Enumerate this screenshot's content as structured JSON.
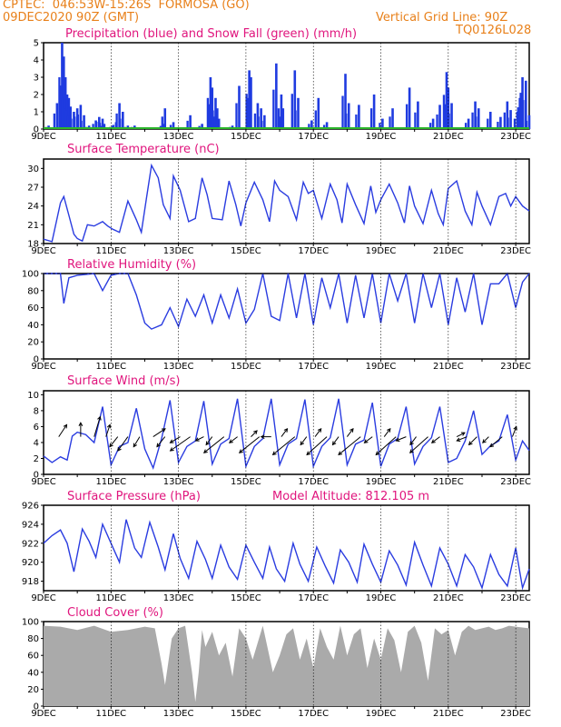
{
  "header": {
    "line1": "CPTEC:  046:53W-15:26S  FORMOSA (GO)",
    "line2": "09DEC2020 90Z (GMT)",
    "grid_note": "Vertical Grid Line: 90Z",
    "code": "TQ0126L028"
  },
  "colors": {
    "header": "#e8801a",
    "title": "#e0157d",
    "line": "#2a3ce0",
    "bar": "#1f3be0",
    "snow": "#2bb52b",
    "cloud": "#aaaaaa"
  },
  "x_tick_labels": [
    "9DEC",
    "11DEC",
    "13DEC",
    "15DEC",
    "17DEC",
    "19DEC",
    "21DEC",
    "23DEC"
  ],
  "chart_data": [
    {
      "type": "bar",
      "title": "Precipitation (blue) and Snow Fall (green) (mm/h)",
      "ylim": [
        0,
        5
      ],
      "yticks": [
        "0",
        "1",
        "2",
        "3",
        "4",
        "5"
      ],
      "series": [
        {
          "name": "Precipitation",
          "x_days": [
            0.15,
            0.4,
            0.55,
            0.6,
            0.65,
            0.7,
            0.75,
            0.8,
            0.9,
            1.0,
            1.1,
            1.2,
            1.35,
            1.55,
            1.65,
            1.75,
            1.8,
            2.05,
            2.15,
            2.25,
            2.35,
            2.5,
            2.7,
            3.5,
            3.55,
            3.6,
            3.85,
            4.35,
            4.7,
            4.95,
            5.0,
            5.1,
            5.15,
            5.2,
            5.6,
            5.8,
            6.1,
            6.15,
            6.35,
            6.45,
            6.55,
            6.9,
            7.05,
            7.1,
            7.45,
            7.55,
            7.95,
            8.15,
            8.4,
            8.95,
            9.05,
            9.35,
            9.8,
            10.05,
            10.35,
            10.85,
            11.1,
            11.55,
            11.75,
            11.95,
            12.0,
            12.1,
            12.6,
            12.8,
            12.9,
            13.25,
            13.55,
            13.75,
            13.85,
            14.05,
            14.15,
            14.2,
            14.3,
            14.4
          ],
          "values": [
            0.2,
            1.5,
            5.0,
            4.2,
            3.0,
            2.0,
            1.8,
            1.3,
            1.0,
            1.2,
            1.4,
            0.8,
            0.2,
            0.5,
            0.7,
            0.6,
            0.3,
            0.2,
            0.4,
            1.5,
            1.0,
            0.2,
            0.2,
            0.1,
            0.3,
            1.2,
            0.4,
            0.8,
            0.3,
            3.0,
            2.4,
            1.8,
            1.2,
            0.6,
            0.2,
            2.5,
            3.4,
            3.0,
            1.5,
            1.2,
            0.8,
            3.8,
            2.0,
            1.2,
            3.4,
            1.8,
            0.5,
            1.8,
            0.4,
            3.2,
            1.5,
            1.4,
            2.0,
            0.6,
            1.2,
            2.4,
            1.6,
            0.6,
            1.4,
            3.3,
            2.4,
            1.5,
            0.6,
            1.6,
            1.2,
            1.0,
            0.7,
            1.6,
            1.1,
            1.0,
            2.1,
            3.0,
            2.8,
            0.8
          ]
        },
        {
          "name": "Snow Fall",
          "values": [
            0
          ]
        }
      ]
    },
    {
      "type": "line",
      "title": "Surface Temperature (nC)",
      "ylim": [
        18,
        31.5
      ],
      "yticks": [
        "18",
        "21",
        "24",
        "27",
        "30"
      ],
      "x_days": [
        0,
        0.25,
        0.5,
        0.6,
        0.75,
        0.9,
        1.0,
        1.15,
        1.3,
        1.5,
        1.75,
        1.9,
        2.05,
        2.25,
        2.5,
        2.75,
        2.9,
        3.05,
        3.2,
        3.4,
        3.55,
        3.75,
        3.85,
        4.05,
        4.3,
        4.5,
        4.7,
        4.85,
        5.0,
        5.3,
        5.5,
        5.7,
        5.85,
        6.0,
        6.25,
        6.5,
        6.7,
        6.85,
        7.0,
        7.25,
        7.5,
        7.7,
        7.85,
        8.0,
        8.25,
        8.5,
        8.7,
        8.85,
        9.0,
        9.25,
        9.5,
        9.7,
        9.85,
        10.0,
        10.25,
        10.5,
        10.7,
        10.85,
        11.0,
        11.25,
        11.5,
        11.7,
        11.85,
        12.0,
        12.25,
        12.5,
        12.7,
        12.85,
        13.0,
        13.25,
        13.5,
        13.7,
        13.85,
        14.0,
        14.2,
        14.4
      ],
      "values": [
        18.7,
        18.3,
        24.5,
        25.5,
        22.5,
        19.5,
        18.8,
        18.4,
        21.0,
        20.8,
        21.5,
        20.8,
        20.3,
        19.8,
        24.8,
        21.8,
        19.8,
        25.2,
        30.5,
        28.5,
        24.2,
        22.0,
        28.8,
        26.5,
        21.5,
        22.0,
        28.5,
        25.8,
        22.0,
        21.8,
        28.0,
        24.2,
        20.8,
        24.5,
        27.8,
        25.0,
        21.5,
        28.0,
        26.5,
        25.5,
        21.8,
        27.8,
        26.0,
        26.5,
        22.0,
        27.5,
        25.0,
        21.3,
        27.5,
        24.2,
        21.2,
        27.2,
        23.0,
        25.0,
        27.5,
        24.5,
        21.3,
        27.2,
        24.0,
        21.2,
        26.5,
        22.8,
        21.0,
        26.8,
        28.0,
        23.2,
        21.0,
        26.2,
        24.0,
        21.0,
        25.5,
        26.0,
        24.0,
        25.5,
        24.0,
        23.2
      ]
    },
    {
      "type": "line",
      "title": "Relative Humidity (%)",
      "ylim": [
        0,
        100
      ],
      "yticks": [
        "0",
        "20",
        "40",
        "60",
        "80",
        "100"
      ],
      "x_days": [
        0,
        0.25,
        0.5,
        0.6,
        0.75,
        1.0,
        1.5,
        1.75,
        2.0,
        2.25,
        2.5,
        2.75,
        3.0,
        3.2,
        3.5,
        3.75,
        4.0,
        4.25,
        4.5,
        4.75,
        5.0,
        5.25,
        5.5,
        5.75,
        6.0,
        6.25,
        6.5,
        6.75,
        7.0,
        7.25,
        7.5,
        7.75,
        8.0,
        8.25,
        8.5,
        8.75,
        9.0,
        9.25,
        9.5,
        9.75,
        10.0,
        10.25,
        10.5,
        10.75,
        11.0,
        11.25,
        11.5,
        11.75,
        12.0,
        12.25,
        12.5,
        12.75,
        13.0,
        13.25,
        13.5,
        13.75,
        14.0,
        14.2,
        14.4
      ],
      "values": [
        100,
        100,
        100,
        65,
        95,
        98,
        100,
        80,
        98,
        100,
        100,
        75,
        42,
        35,
        40,
        60,
        38,
        70,
        50,
        75,
        42,
        75,
        48,
        82,
        42,
        58,
        100,
        50,
        45,
        100,
        48,
        100,
        40,
        95,
        60,
        100,
        42,
        98,
        48,
        100,
        42,
        100,
        68,
        100,
        42,
        100,
        60,
        100,
        40,
        95,
        55,
        100,
        40,
        88,
        88,
        100,
        60,
        90,
        100
      ]
    },
    {
      "type": "line",
      "title": "Surface Wind (m/s)",
      "ylim": [
        0,
        10.5
      ],
      "yticks": [
        "0",
        "2",
        "4",
        "6",
        "8",
        "10"
      ],
      "x_days": [
        0,
        0.25,
        0.5,
        0.7,
        0.85,
        1.0,
        1.25,
        1.5,
        1.75,
        2.0,
        2.25,
        2.5,
        2.75,
        3.0,
        3.25,
        3.5,
        3.75,
        4.0,
        4.25,
        4.5,
        4.75,
        5.0,
        5.25,
        5.5,
        5.75,
        6.0,
        6.25,
        6.5,
        6.75,
        7.0,
        7.25,
        7.5,
        7.75,
        8.0,
        8.25,
        8.5,
        8.75,
        9.0,
        9.25,
        9.5,
        9.75,
        10.0,
        10.25,
        10.5,
        10.75,
        11.0,
        11.25,
        11.5,
        11.75,
        12.0,
        12.25,
        12.5,
        12.75,
        13.0,
        13.25,
        13.5,
        13.75,
        14.0,
        14.2,
        14.4
      ],
      "values": [
        2.3,
        1.5,
        2.2,
        1.8,
        4.8,
        5.3,
        5.0,
        4.0,
        8.5,
        1.2,
        3.5,
        4.0,
        8.3,
        3.2,
        0.8,
        4.5,
        9.3,
        1.5,
        3.5,
        4.2,
        9.2,
        1.3,
        3.8,
        4.5,
        9.5,
        1.0,
        3.5,
        4.5,
        9.5,
        1.2,
        3.8,
        4.5,
        9.4,
        1.0,
        3.5,
        4.6,
        9.5,
        1.2,
        3.8,
        4.3,
        9.0,
        1.0,
        3.8,
        4.5,
        8.5,
        1.3,
        3.5,
        4.6,
        8.5,
        1.5,
        2.0,
        4.2,
        8.0,
        2.5,
        3.6,
        4.2,
        7.5,
        1.8,
        4.2,
        3.0
      ],
      "arrows": [
        {
          "x_day": 0.45,
          "u": 0.4,
          "v": 0.6
        },
        {
          "x_day": 1.1,
          "u": 0.0,
          "v": 0.7
        },
        {
          "x_day": 1.5,
          "u": 0.3,
          "v": 1.0
        },
        {
          "x_day": 1.85,
          "u": 0.2,
          "v": 0.6
        },
        {
          "x_day": 2.2,
          "u": -0.4,
          "v": -0.5
        },
        {
          "x_day": 2.5,
          "u": -0.5,
          "v": -0.7
        },
        {
          "x_day": 2.85,
          "u": -0.3,
          "v": -0.5
        },
        {
          "x_day": 3.25,
          "u": 0.6,
          "v": 0.4
        },
        {
          "x_day": 3.6,
          "u": -0.4,
          "v": -0.5
        },
        {
          "x_day": 4.05,
          "u": -0.5,
          "v": -0.3
        },
        {
          "x_day": 4.35,
          "u": -1.0,
          "v": -0.7
        },
        {
          "x_day": 4.75,
          "u": -0.4,
          "v": -0.2
        },
        {
          "x_day": 5.0,
          "u": -0.3,
          "v": -0.4
        },
        {
          "x_day": 5.35,
          "u": -1.0,
          "v": -0.8
        },
        {
          "x_day": 5.75,
          "u": -0.4,
          "v": -0.3
        },
        {
          "x_day": 6.15,
          "u": 0.3,
          "v": 0.3
        },
        {
          "x_day": 6.4,
          "u": -1.0,
          "v": -0.8
        },
        {
          "x_day": 6.75,
          "u": -0.5,
          "v": 0.0
        },
        {
          "x_day": 7.05,
          "u": 0.3,
          "v": 0.4
        },
        {
          "x_day": 7.45,
          "u": -1.1,
          "v": -0.9
        },
        {
          "x_day": 7.8,
          "u": -0.3,
          "v": -0.4
        },
        {
          "x_day": 8.05,
          "u": 0.3,
          "v": 0.4
        },
        {
          "x_day": 8.4,
          "u": -1.0,
          "v": -0.9
        },
        {
          "x_day": 8.75,
          "u": -0.3,
          "v": -0.4
        },
        {
          "x_day": 9.0,
          "u": 0.3,
          "v": 0.4
        },
        {
          "x_day": 9.4,
          "u": -1.1,
          "v": -0.9
        },
        {
          "x_day": 9.75,
          "u": -0.4,
          "v": -0.3
        },
        {
          "x_day": 10.1,
          "u": 0.3,
          "v": 0.4
        },
        {
          "x_day": 10.45,
          "u": -1.0,
          "v": -0.9
        },
        {
          "x_day": 10.75,
          "u": -0.5,
          "v": -0.2
        },
        {
          "x_day": 11.05,
          "u": -0.3,
          "v": -0.4
        },
        {
          "x_day": 11.4,
          "u": -0.9,
          "v": -0.8
        },
        {
          "x_day": 11.75,
          "u": -0.4,
          "v": -0.3
        },
        {
          "x_day": 12.25,
          "u": 0.4,
          "v": 0.2
        },
        {
          "x_day": 12.55,
          "u": -0.5,
          "v": -0.2
        },
        {
          "x_day": 12.85,
          "u": -0.4,
          "v": -0.4
        },
        {
          "x_day": 13.2,
          "u": -0.3,
          "v": -0.3
        },
        {
          "x_day": 13.6,
          "u": -0.6,
          "v": -0.5
        },
        {
          "x_day": 13.9,
          "u": 0.2,
          "v": 0.5
        }
      ]
    },
    {
      "type": "line",
      "title": "Surface Pressure (hPa)",
      "annotation": "Model Altitude: 812.105 m",
      "ylim": [
        917,
        926
      ],
      "yticks": [
        "918",
        "920",
        "922",
        "924",
        "926"
      ],
      "x_days": [
        0,
        0.25,
        0.5,
        0.7,
        0.9,
        1.15,
        1.35,
        1.55,
        1.75,
        2.0,
        2.25,
        2.45,
        2.7,
        2.9,
        3.15,
        3.4,
        3.6,
        3.85,
        4.05,
        4.3,
        4.55,
        4.8,
        5.0,
        5.25,
        5.5,
        5.75,
        6.0,
        6.25,
        6.5,
        6.7,
        6.9,
        7.15,
        7.4,
        7.6,
        7.85,
        8.1,
        8.35,
        8.6,
        8.8,
        9.05,
        9.3,
        9.5,
        9.75,
        10.0,
        10.25,
        10.5,
        10.75,
        11.0,
        11.25,
        11.5,
        11.75,
        12.0,
        12.25,
        12.5,
        12.75,
        13.0,
        13.25,
        13.5,
        13.75,
        14.0,
        14.2,
        14.4
      ],
      "values": [
        922.0,
        922.8,
        923.4,
        922.0,
        919.0,
        923.5,
        922.2,
        920.5,
        924.0,
        922.0,
        920.0,
        924.5,
        921.5,
        920.5,
        924.2,
        921.6,
        919.2,
        923.0,
        920.4,
        918.3,
        922.2,
        920.3,
        918.3,
        921.8,
        919.5,
        918.2,
        921.8,
        920.0,
        918.3,
        921.6,
        919.3,
        918.0,
        922.0,
        919.8,
        918.0,
        921.6,
        919.6,
        917.8,
        921.3,
        920.0,
        917.9,
        921.9,
        919.8,
        917.9,
        921.2,
        919.7,
        917.6,
        922.1,
        919.7,
        917.5,
        921.5,
        919.8,
        917.5,
        920.8,
        919.5,
        917.3,
        920.8,
        918.7,
        917.5,
        921.5,
        917.3,
        919.3
      ]
    },
    {
      "type": "area",
      "title": "Cloud Cover (%)",
      "ylim": [
        0,
        100
      ],
      "yticks": [
        "0",
        "20",
        "40",
        "60",
        "80",
        "100"
      ],
      "x_days": [
        0,
        0.5,
        1.0,
        1.5,
        2.0,
        2.5,
        3.0,
        3.3,
        3.5,
        3.6,
        3.8,
        4.0,
        4.2,
        4.4,
        4.5,
        4.6,
        4.7,
        4.8,
        5.0,
        5.2,
        5.4,
        5.6,
        5.8,
        6.0,
        6.2,
        6.5,
        6.8,
        7.0,
        7.2,
        7.4,
        7.6,
        7.8,
        8.0,
        8.2,
        8.4,
        8.6,
        8.8,
        9.0,
        9.2,
        9.4,
        9.6,
        9.8,
        10.0,
        10.2,
        10.4,
        10.6,
        10.8,
        11.0,
        11.2,
        11.4,
        11.6,
        11.8,
        12.0,
        12.2,
        12.4,
        12.6,
        12.8,
        13.0,
        13.2,
        13.4,
        13.6,
        13.8,
        14.0,
        14.4
      ],
      "values": [
        95,
        94,
        90,
        95,
        88,
        90,
        94,
        92,
        50,
        25,
        80,
        92,
        95,
        40,
        5,
        40,
        90,
        70,
        88,
        60,
        75,
        35,
        92,
        80,
        55,
        95,
        40,
        60,
        85,
        92,
        55,
        80,
        45,
        92,
        70,
        55,
        95,
        60,
        85,
        92,
        45,
        80,
        55,
        92,
        78,
        40,
        88,
        95,
        75,
        30,
        92,
        85,
        90,
        60,
        88,
        95,
        90,
        92,
        94,
        90,
        92,
        95,
        94,
        92
      ]
    }
  ]
}
